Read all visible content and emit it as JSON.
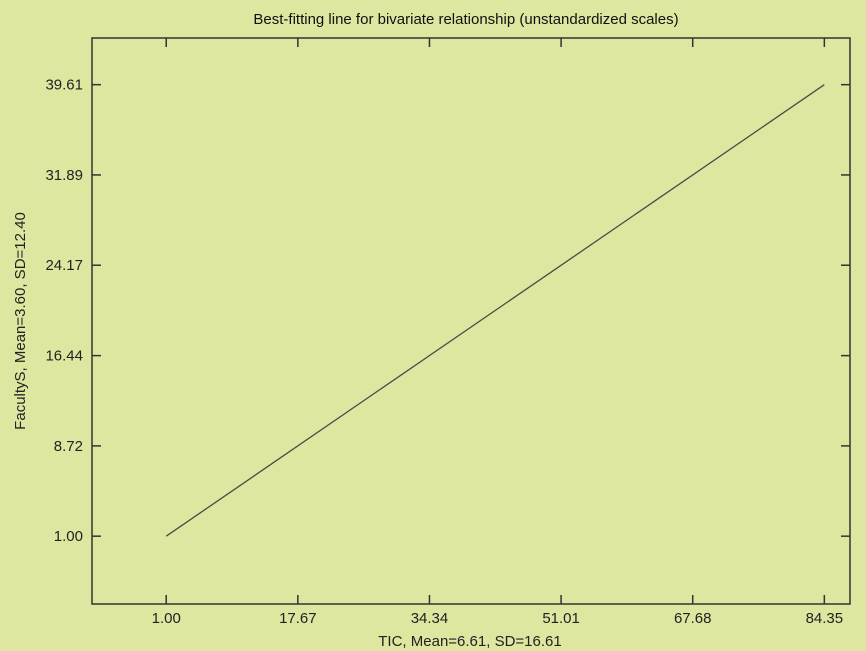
{
  "chart_data": {
    "type": "line",
    "title": "Best-fitting line for bivariate relationship (unstandardized scales)",
    "xlabel": "TIC, Mean=6.61, SD=16.61",
    "ylabel": "FacultyS, Mean=3.60, SD=12.40",
    "x_ticks": [
      1.0,
      17.67,
      34.34,
      51.01,
      67.68,
      84.35
    ],
    "x_tick_labels": [
      "1.00",
      "17.67",
      "34.34",
      "51.01",
      "67.68",
      "84.35"
    ],
    "y_ticks": [
      1.0,
      8.72,
      16.44,
      24.17,
      31.89,
      39.61
    ],
    "y_tick_labels": [
      "1.00",
      "8.72",
      "16.44",
      "24.17",
      "31.89",
      "39.61"
    ],
    "xlim": [
      -8.4,
      87.6
    ],
    "ylim": [
      -4.8,
      43.6
    ],
    "grid": false,
    "series": [
      {
        "x": [
          1.0,
          84.35
        ],
        "y": [
          1.0,
          39.61
        ]
      }
    ],
    "colors": {
      "background": "#dfe6a0",
      "line": "#4a4a4a",
      "axis": "#333333"
    }
  }
}
